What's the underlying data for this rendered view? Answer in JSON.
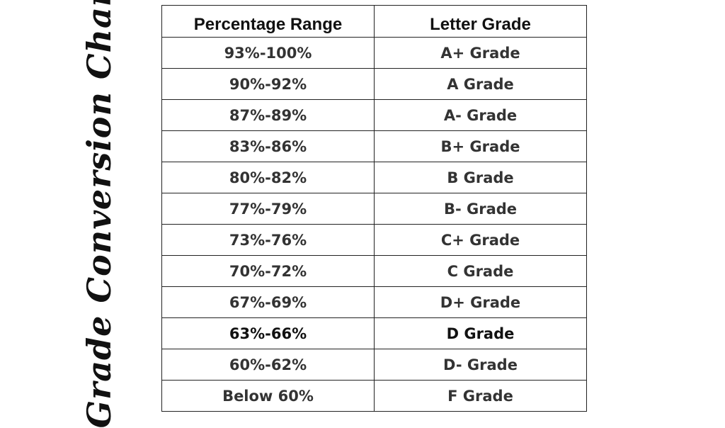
{
  "side_title": "Grade Conversion Chart",
  "watermark": "",
  "table": {
    "headers": [
      "Percentage Range",
      "Letter Grade"
    ],
    "rows": [
      {
        "range": "93%-100%",
        "grade": "A+ Grade"
      },
      {
        "range": "90%-92%",
        "grade": "A Grade"
      },
      {
        "range": "87%-89%",
        "grade": "A- Grade"
      },
      {
        "range": "83%-86%",
        "grade": "B+ Grade"
      },
      {
        "range": "80%-82%",
        "grade": "B Grade"
      },
      {
        "range": "77%-79%",
        "grade": "B- Grade"
      },
      {
        "range": "73%-76%",
        "grade": "C+ Grade"
      },
      {
        "range": "70%-72%",
        "grade": "C Grade"
      },
      {
        "range": "67%-69%",
        "grade": "D+ Grade"
      },
      {
        "range": "63%-66%",
        "grade": "D Grade"
      },
      {
        "range": "60%-62%",
        "grade": "D- Grade"
      },
      {
        "range": "Below 60%",
        "grade": "F Grade"
      }
    ]
  },
  "colors": {
    "text": "#333333",
    "header_text": "#111111",
    "border": "#222222",
    "background": "#ffffff"
  }
}
